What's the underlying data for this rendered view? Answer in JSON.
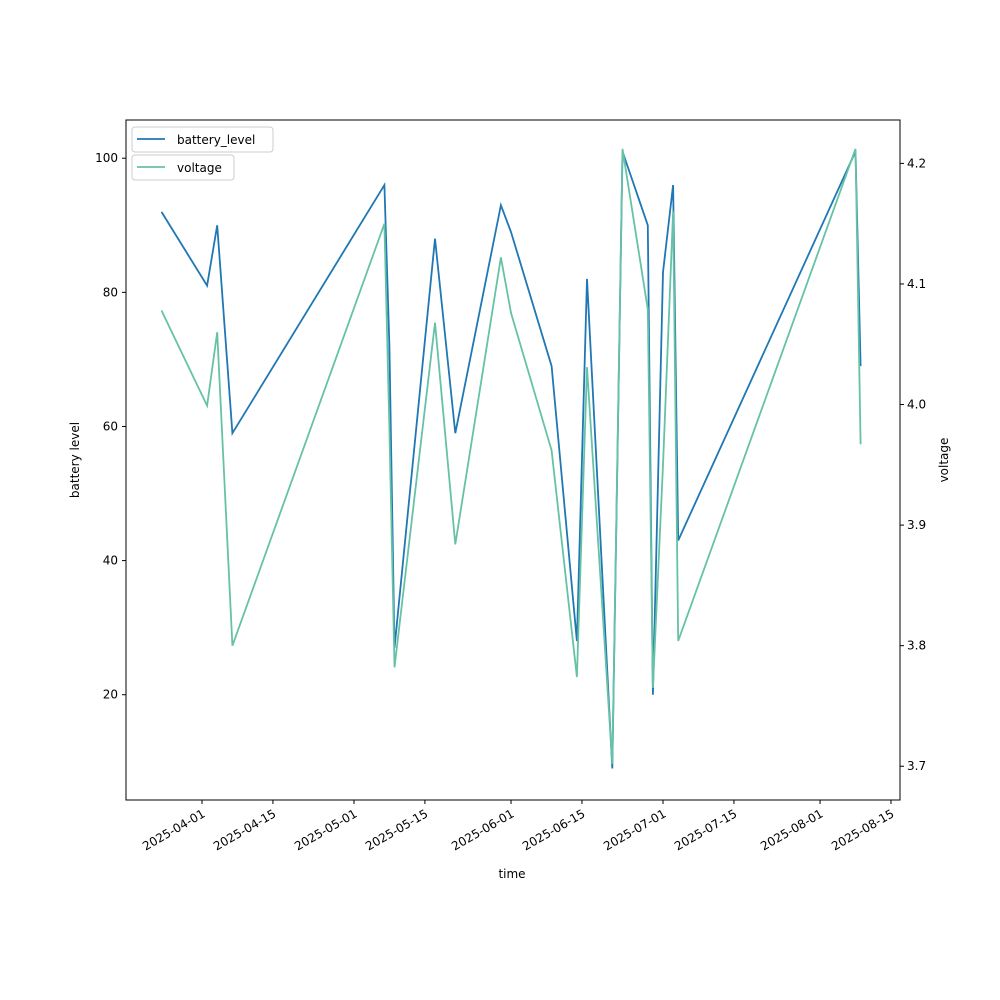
{
  "chart_data": {
    "type": "line",
    "xlabel": "time",
    "ylabel_left": "battery level",
    "ylabel_right": "voltage",
    "x": [
      "2025-03-24",
      "2025-04-02",
      "2025-04-04",
      "2025-04-07",
      "2025-05-07",
      "2025-05-08",
      "2025-05-09",
      "2025-05-17",
      "2025-05-21",
      "2025-05-30",
      "2025-06-01",
      "2025-06-09",
      "2025-06-14",
      "2025-06-16",
      "2025-06-21",
      "2025-06-23",
      "2025-06-28",
      "2025-06-29",
      "2025-07-01",
      "2025-07-03",
      "2025-07-04",
      "2025-08-08",
      "2025-08-09"
    ],
    "series": [
      {
        "name": "battery_level",
        "axis": "left",
        "color": "#1f77b4",
        "values": [
          92,
          81,
          90,
          59,
          96,
          72,
          27,
          88,
          59,
          93,
          89,
          69,
          28,
          82,
          9,
          101,
          90,
          20,
          83,
          96,
          43,
          101,
          69
        ]
      },
      {
        "name": "voltage",
        "axis": "right",
        "color": "#66c2a5",
        "values": [
          4.078,
          3.999,
          4.06,
          3.8,
          4.15,
          3.98,
          3.782,
          4.068,
          3.884,
          4.122,
          4.076,
          3.962,
          3.774,
          4.031,
          3.702,
          4.212,
          4.079,
          3.765,
          3.95,
          4.16,
          3.804,
          4.212,
          3.967
        ]
      }
    ],
    "xticks": [
      "2025-04-01",
      "2025-04-15",
      "2025-05-01",
      "2025-05-15",
      "2025-06-01",
      "2025-06-15",
      "2025-07-01",
      "2025-07-15",
      "2025-08-01",
      "2025-08-15"
    ],
    "yticks_left": [
      20,
      40,
      60,
      80,
      100
    ],
    "yticks_right": [
      3.7,
      3.8,
      3.9,
      4.0,
      4.1,
      4.2
    ],
    "ylim_left": [
      4.3,
      105.7
    ],
    "ylim_right": [
      3.672,
      4.236
    ],
    "legend": [
      "battery_level",
      "voltage"
    ],
    "legend_placement": "upper-left",
    "grid": false
  }
}
